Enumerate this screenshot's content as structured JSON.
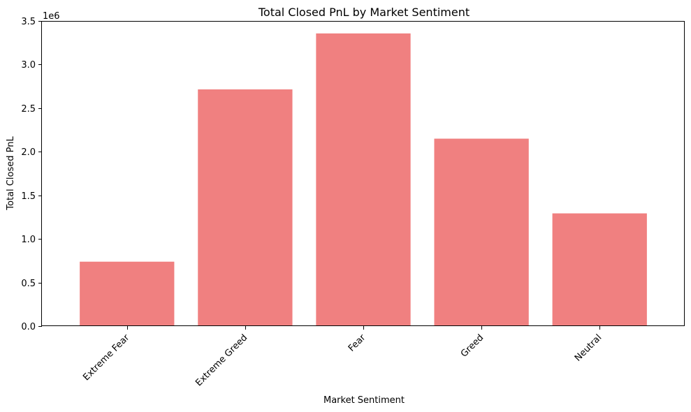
{
  "chart_data": {
    "type": "bar",
    "title": "Total Closed PnL by Market Sentiment",
    "xlabel": "Market Sentiment",
    "ylabel": "Total Closed PnL",
    "offset_text": "1e6",
    "categories": [
      "Extreme Fear",
      "Extreme Greed",
      "Fear",
      "Greed",
      "Neutral"
    ],
    "values": [
      739000,
      2715000,
      3357000,
      2150000,
      1293000
    ],
    "ylim": [
      0,
      3500000
    ],
    "yticks": [
      0,
      500000,
      1000000,
      1500000,
      2000000,
      2500000,
      3000000,
      3500000
    ],
    "ytick_labels": [
      "0.0",
      "0.5",
      "1.0",
      "1.5",
      "2.0",
      "2.5",
      "3.0",
      "3.5"
    ],
    "bar_color": "#f08080",
    "grid": false
  }
}
